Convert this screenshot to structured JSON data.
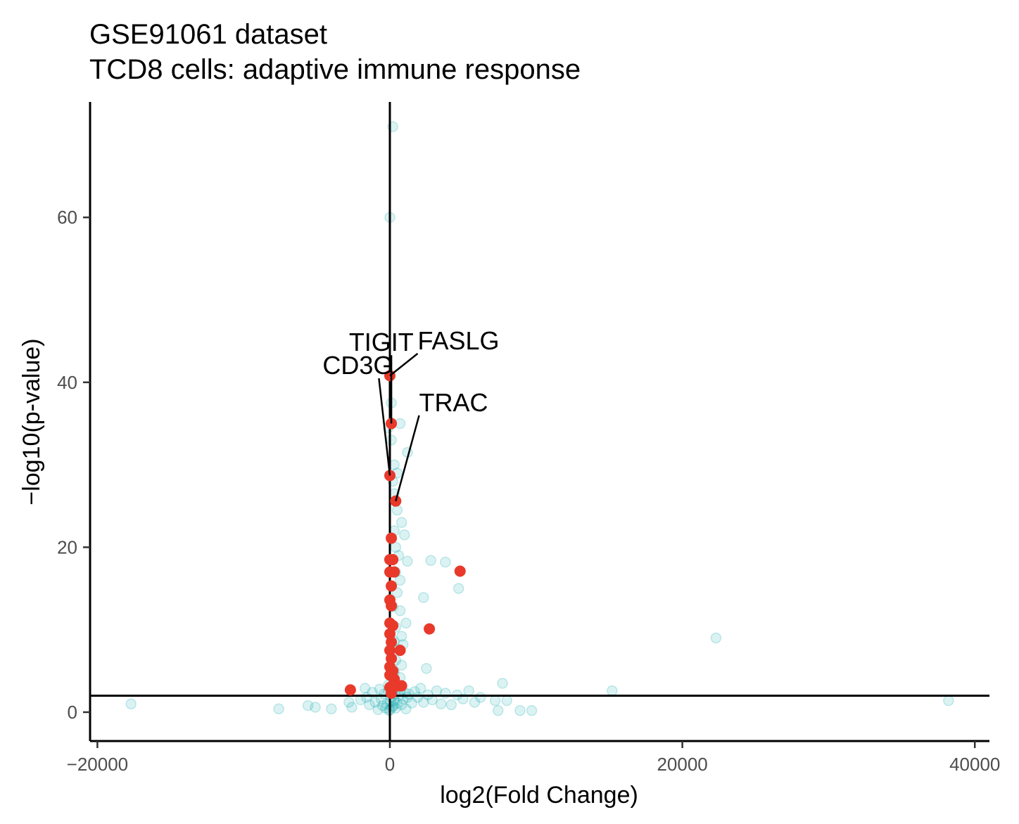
{
  "chart_data": {
    "type": "scatter",
    "title": "GSE91061 dataset",
    "subtitle": "TCD8 cells: adaptive immune response",
    "xlabel": "log2(Fold Change)",
    "ylabel": "-log10(p-value)",
    "xlim": [
      -20500,
      41000
    ],
    "ylim": [
      -3.5,
      74
    ],
    "xticks": [
      -20000,
      0,
      20000,
      40000
    ],
    "xtick_labels": [
      "-20000",
      "0",
      "20000",
      "40000"
    ],
    "yticks": [
      0,
      20,
      40,
      60
    ],
    "ytick_labels": [
      "0",
      "20",
      "40",
      "60"
    ],
    "reference_lines": {
      "vertical_x": 0,
      "horizontal_y": 2
    },
    "colors": {
      "background": "#00a5a8",
      "highlight": "#e8392a",
      "axis": "#000000"
    },
    "series": [
      {
        "role": "background",
        "points": [
          [
            -17700,
            1.0
          ],
          [
            -7600,
            0.4
          ],
          [
            -5600,
            0.8
          ],
          [
            -5100,
            0.6
          ],
          [
            -4000,
            0.4
          ],
          [
            -2800,
            1.2
          ],
          [
            -2600,
            0.6
          ],
          [
            -2000,
            1.5
          ],
          [
            -1700,
            2.9
          ],
          [
            -1600,
            1.8
          ],
          [
            -1400,
            0.9
          ],
          [
            -1200,
            2.4
          ],
          [
            -1000,
            1.2
          ],
          [
            -800,
            0.3
          ],
          [
            -700,
            2.8
          ],
          [
            -600,
            1.6
          ],
          [
            -500,
            0.8
          ],
          [
            -400,
            2.2
          ],
          [
            -300,
            0.5
          ],
          [
            -200,
            1.0
          ],
          [
            -100,
            3.3
          ],
          [
            -100,
            2.6
          ],
          [
            -50,
            0.2
          ],
          [
            0,
            0.3
          ],
          [
            50,
            1.2
          ],
          [
            100,
            1.8
          ],
          [
            150,
            0.6
          ],
          [
            200,
            2.4
          ],
          [
            250,
            0.8
          ],
          [
            300,
            1.4
          ],
          [
            350,
            2.2
          ],
          [
            400,
            0.5
          ],
          [
            500,
            1.1
          ],
          [
            600,
            2.0
          ],
          [
            700,
            2.6
          ],
          [
            800,
            0.9
          ],
          [
            900,
            1.6
          ],
          [
            1000,
            2.4
          ],
          [
            1100,
            0.4
          ],
          [
            1200,
            1.8
          ],
          [
            1300,
            2.2
          ],
          [
            1500,
            1.1
          ],
          [
            1700,
            2.5
          ],
          [
            1900,
            1.8
          ],
          [
            2100,
            2.9
          ],
          [
            2300,
            1.2
          ],
          [
            2600,
            2.1
          ],
          [
            2900,
            1.5
          ],
          [
            3200,
            2.6
          ],
          [
            3500,
            1.0
          ],
          [
            3800,
            2.3
          ],
          [
            4200,
            0.9
          ],
          [
            4600,
            2.1
          ],
          [
            5000,
            1.6
          ],
          [
            5400,
            2.6
          ],
          [
            5800,
            1.2
          ],
          [
            6200,
            1.8
          ],
          [
            7200,
            1.4
          ],
          [
            7400,
            0.2
          ],
          [
            7700,
            3.5
          ],
          [
            8000,
            1.4
          ],
          [
            8900,
            0.2
          ],
          [
            9700,
            0.2
          ],
          [
            15200,
            2.6
          ],
          [
            22300,
            9.0
          ],
          [
            38200,
            1.4
          ],
          [
            200,
            71.0
          ],
          [
            0,
            60.0
          ],
          [
            100,
            37.5
          ],
          [
            700,
            35.0
          ],
          [
            -100,
            34.5
          ],
          [
            100,
            33.0
          ],
          [
            1200,
            31.5
          ],
          [
            300,
            30.0
          ],
          [
            500,
            29.0
          ],
          [
            200,
            28.0
          ],
          [
            300,
            26.5
          ],
          [
            500,
            24.5
          ],
          [
            800,
            23.0
          ],
          [
            300,
            22.0
          ],
          [
            1000,
            21.5
          ],
          [
            400,
            20.0
          ],
          [
            600,
            19.0
          ],
          [
            1200,
            18.3
          ],
          [
            2800,
            18.4
          ],
          [
            3800,
            18.2
          ],
          [
            400,
            17.0
          ],
          [
            700,
            16.0
          ],
          [
            4700,
            15.0
          ],
          [
            500,
            14.5
          ],
          [
            2300,
            13.9
          ],
          [
            200,
            12.8
          ],
          [
            700,
            12.3
          ],
          [
            1100,
            10.8
          ],
          [
            400,
            10.3
          ],
          [
            800,
            9.2
          ],
          [
            300,
            8.6
          ],
          [
            900,
            8.2
          ],
          [
            600,
            7.6
          ],
          [
            400,
            6.3
          ],
          [
            800,
            5.7
          ],
          [
            2500,
            5.3
          ],
          [
            300,
            4.9
          ],
          [
            700,
            4.2
          ]
        ]
      },
      {
        "role": "highlight",
        "points": [
          [
            0,
            40.8
          ],
          [
            100,
            35.0
          ],
          [
            0,
            28.7
          ],
          [
            400,
            25.6
          ],
          [
            100,
            21.1
          ],
          [
            0,
            18.5
          ],
          [
            200,
            18.5
          ],
          [
            0,
            17.0
          ],
          [
            300,
            17.0
          ],
          [
            4800,
            17.1
          ],
          [
            100,
            15.3
          ],
          [
            0,
            13.6
          ],
          [
            100,
            12.9
          ],
          [
            0,
            10.8
          ],
          [
            200,
            10.5
          ],
          [
            2700,
            10.1
          ],
          [
            0,
            9.5
          ],
          [
            100,
            8.5
          ],
          [
            0,
            7.5
          ],
          [
            700,
            7.5
          ],
          [
            100,
            6.5
          ],
          [
            0,
            5.5
          ],
          [
            200,
            5.0
          ],
          [
            0,
            4.5
          ],
          [
            300,
            4.0
          ],
          [
            500,
            3.2
          ],
          [
            800,
            3.2
          ],
          [
            0,
            3.0
          ],
          [
            -2700,
            2.7
          ],
          [
            100,
            2.3
          ]
        ]
      }
    ],
    "annotations": [
      {
        "label": "FASLG",
        "x": 1900,
        "y": 44.0,
        "point": [
          0,
          40.8
        ]
      },
      {
        "label": "TIGIT",
        "x": -2800,
        "y": 43.8,
        "point": [
          100,
          35.0
        ]
      },
      {
        "label": "CD3G",
        "x": -4600,
        "y": 41.0,
        "point": [
          0,
          28.7
        ]
      },
      {
        "label": "TRAC",
        "x": 2000,
        "y": 36.5,
        "point": [
          400,
          25.6
        ]
      }
    ]
  }
}
